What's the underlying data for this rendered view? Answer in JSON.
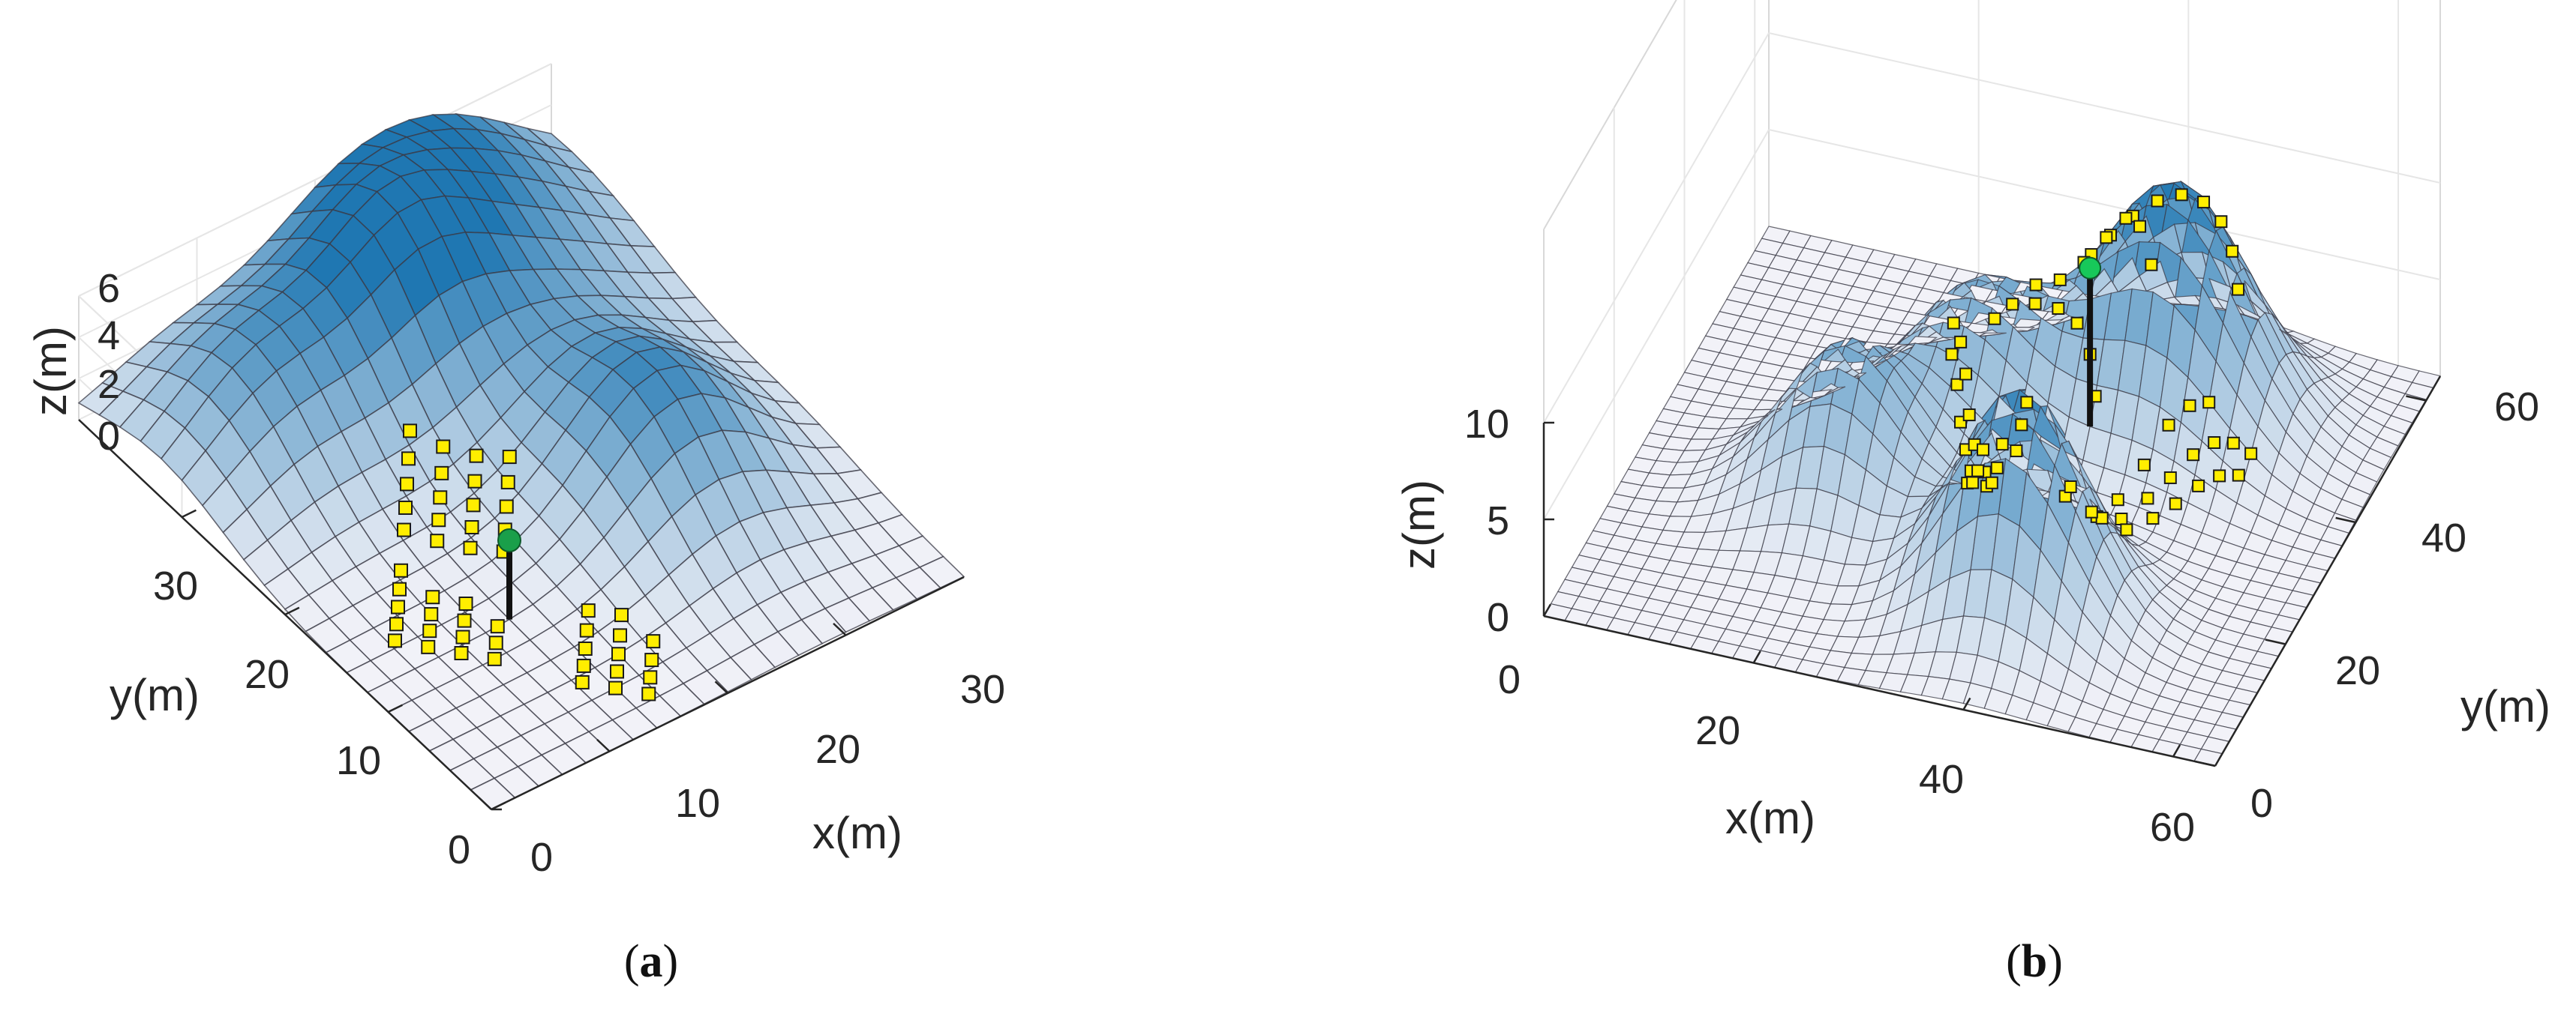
{
  "chart_data": [
    {
      "type": "surface3d",
      "panel_label": "a",
      "xlabel": "x(m)",
      "ylabel": "y(m)",
      "zlabel": "z(m)",
      "xlim": [
        0,
        40
      ],
      "ylim": [
        0,
        40
      ],
      "zlim": [
        0,
        6
      ],
      "x_ticks": [
        "0",
        "10",
        "20",
        "30"
      ],
      "y_ticks": [
        "0",
        "10",
        "20",
        "30"
      ],
      "z_ticks": [
        "0",
        "2",
        "4",
        "6"
      ],
      "grid_size": 20,
      "hills": [
        {
          "x": 8,
          "y": 32,
          "height": 4.5,
          "spread": 6
        },
        {
          "x": 20,
          "y": 32,
          "height": 4.0,
          "spread": 5
        },
        {
          "x": 28,
          "y": 16,
          "height": 5.5,
          "spread": 6
        },
        {
          "x": 28,
          "y": 38,
          "height": 6.5,
          "spread": 9
        }
      ],
      "base_station": {
        "x": 12,
        "y": 12,
        "z_top": 4.0,
        "color": "#1a9f4a"
      },
      "sensor_nodes": [
        {
          "x": 10.5,
          "y": 20.5
        },
        {
          "x": 11.5,
          "y": 21.5
        },
        {
          "x": 12.5,
          "y": 22.5
        },
        {
          "x": 13.5,
          "y": 23.5
        },
        {
          "x": 14.5,
          "y": 24.5
        },
        {
          "x": 12,
          "y": 19
        },
        {
          "x": 13,
          "y": 20
        },
        {
          "x": 14,
          "y": 21
        },
        {
          "x": 15,
          "y": 22
        },
        {
          "x": 16,
          "y": 23
        },
        {
          "x": 13.5,
          "y": 17.5
        },
        {
          "x": 14.5,
          "y": 18.5
        },
        {
          "x": 15.5,
          "y": 19.5
        },
        {
          "x": 16.5,
          "y": 20.5
        },
        {
          "x": 17.5,
          "y": 21.5
        },
        {
          "x": 15,
          "y": 16
        },
        {
          "x": 16,
          "y": 17
        },
        {
          "x": 17,
          "y": 18
        },
        {
          "x": 18,
          "y": 19
        },
        {
          "x": 19,
          "y": 20
        },
        {
          "x": 4.5,
          "y": 14.5
        },
        {
          "x": 5.5,
          "y": 15.5
        },
        {
          "x": 6.5,
          "y": 16.5
        },
        {
          "x": 7.5,
          "y": 17.5
        },
        {
          "x": 8.5,
          "y": 18.5
        },
        {
          "x": 6,
          "y": 13
        },
        {
          "x": 7,
          "y": 14
        },
        {
          "x": 8,
          "y": 15
        },
        {
          "x": 9,
          "y": 16
        },
        {
          "x": 7.5,
          "y": 11.5
        },
        {
          "x": 8.5,
          "y": 12.5
        },
        {
          "x": 9.5,
          "y": 13.5
        },
        {
          "x": 10.5,
          "y": 14.5
        },
        {
          "x": 9,
          "y": 10
        },
        {
          "x": 10,
          "y": 11
        },
        {
          "x": 11,
          "y": 12
        },
        {
          "x": 12.5,
          "y": 5.5
        },
        {
          "x": 13.5,
          "y": 6.5
        },
        {
          "x": 14.5,
          "y": 7.5
        },
        {
          "x": 15.5,
          "y": 8.5
        },
        {
          "x": 16.5,
          "y": 9.5
        },
        {
          "x": 14,
          "y": 4
        },
        {
          "x": 15,
          "y": 5
        },
        {
          "x": 16,
          "y": 6
        },
        {
          "x": 17,
          "y": 7
        },
        {
          "x": 18,
          "y": 8
        },
        {
          "x": 15.5,
          "y": 2.5
        },
        {
          "x": 16.5,
          "y": 3.5
        },
        {
          "x": 17.5,
          "y": 4.5
        },
        {
          "x": 18.5,
          "y": 5.5
        }
      ]
    },
    {
      "type": "surface3d",
      "panel_label": "b",
      "xlabel": "x(m)",
      "ylabel": "y(m)",
      "zlabel": "z(m)",
      "xlim": [
        0,
        64
      ],
      "ylim": [
        0,
        64
      ],
      "zlim": [
        0,
        20
      ],
      "x_ticks": [
        "0",
        "20",
        "40",
        "60"
      ],
      "y_ticks": [
        "0",
        "20",
        "40",
        "60"
      ],
      "z_ticks": [
        "0",
        "5",
        "10"
      ],
      "grid_size": 32,
      "hills": [
        {
          "x": 40,
          "y": 16,
          "height": 11.5,
          "spread": 6
        },
        {
          "x": 20,
          "y": 26,
          "height": 8.0,
          "spread": 6
        },
        {
          "x": 28,
          "y": 40,
          "height": 7.5,
          "spread": 6
        },
        {
          "x": 44,
          "y": 48,
          "height": 12.5,
          "spread": 7
        }
      ],
      "base_station": {
        "x": 40,
        "y": 36,
        "z_top": 11.5,
        "color": "#17c85a"
      },
      "sensor_nodes": [
        {
          "x": 36.4,
          "y": 47.1
        },
        {
          "x": 37.6,
          "y": 49.0
        },
        {
          "x": 39.2,
          "y": 50.6
        },
        {
          "x": 41.2,
          "y": 51.6
        },
        {
          "x": 43.4,
          "y": 51.9
        },
        {
          "x": 45.6,
          "y": 51.6
        },
        {
          "x": 47.6,
          "y": 50.6
        },
        {
          "x": 49.2,
          "y": 49.0
        },
        {
          "x": 50.4,
          "y": 47.1
        },
        {
          "x": 32.5,
          "y": 43.0
        },
        {
          "x": 34.2,
          "y": 44.8
        },
        {
          "x": 36.0,
          "y": 46.2
        },
        {
          "x": 38.0,
          "y": 46.6
        },
        {
          "x": 40.0,
          "y": 46.2
        },
        {
          "x": 41.8,
          "y": 44.8
        },
        {
          "x": 43.5,
          "y": 43.0
        },
        {
          "x": 30.4,
          "y": 37.5
        },
        {
          "x": 31.5,
          "y": 39.3
        },
        {
          "x": 33.2,
          "y": 40.7
        },
        {
          "x": 35.2,
          "y": 41.3
        },
        {
          "x": 37.2,
          "y": 40.7
        },
        {
          "x": 38.9,
          "y": 39.3
        },
        {
          "x": 40.0,
          "y": 37.5
        },
        {
          "x": 27.0,
          "y": 36.0
        },
        {
          "x": 27.5,
          "y": 34.0
        },
        {
          "x": 28.5,
          "y": 32.5
        },
        {
          "x": 28.0,
          "y": 35.0
        },
        {
          "x": 29.0,
          "y": 33.5
        },
        {
          "x": 29.5,
          "y": 30.5
        },
        {
          "x": 30.5,
          "y": 29.0
        },
        {
          "x": 31.5,
          "y": 27.5
        },
        {
          "x": 30.0,
          "y": 31.5
        },
        {
          "x": 31.0,
          "y": 30.0
        },
        {
          "x": 32.5,
          "y": 28.5
        },
        {
          "x": 33.5,
          "y": 26.0
        },
        {
          "x": 34.5,
          "y": 24.5
        },
        {
          "x": 35.5,
          "y": 23.0
        },
        {
          "x": 36.5,
          "y": 21.5
        },
        {
          "x": 37.5,
          "y": 22.5
        },
        {
          "x": 38.5,
          "y": 21.0
        },
        {
          "x": 39.5,
          "y": 19.5
        },
        {
          "x": 41.0,
          "y": 26.0
        },
        {
          "x": 42.0,
          "y": 24.5
        },
        {
          "x": 43.5,
          "y": 27.5
        },
        {
          "x": 44.5,
          "y": 26.0
        },
        {
          "x": 45.0,
          "y": 30.0
        },
        {
          "x": 46.0,
          "y": 28.5
        },
        {
          "x": 46.5,
          "y": 33.0
        },
        {
          "x": 47.5,
          "y": 31.5
        },
        {
          "x": 48.0,
          "y": 35.0
        },
        {
          "x": 49.0,
          "y": 33.5
        },
        {
          "x": 49.5,
          "y": 37.0
        },
        {
          "x": 50.5,
          "y": 35.5
        },
        {
          "x": 51.0,
          "y": 38.5
        },
        {
          "x": 52.0,
          "y": 37.0
        },
        {
          "x": 52.5,
          "y": 39.5
        },
        {
          "x": 53.5,
          "y": 38.0
        },
        {
          "x": 54.0,
          "y": 40.0
        },
        {
          "x": 48.5,
          "y": 39.0
        },
        {
          "x": 50.0,
          "y": 40.0
        },
        {
          "x": 47.0,
          "y": 37.5
        },
        {
          "x": 45.5,
          "y": 35.0
        },
        {
          "x": 44.0,
          "y": 32.0
        },
        {
          "x": 42.5,
          "y": 29.0
        },
        {
          "x": 32.0,
          "y": 25.0
        },
        {
          "x": 33.0,
          "y": 23.5
        },
        {
          "x": 34.0,
          "y": 22.0
        },
        {
          "x": 35.0,
          "y": 20.5
        }
      ]
    }
  ]
}
